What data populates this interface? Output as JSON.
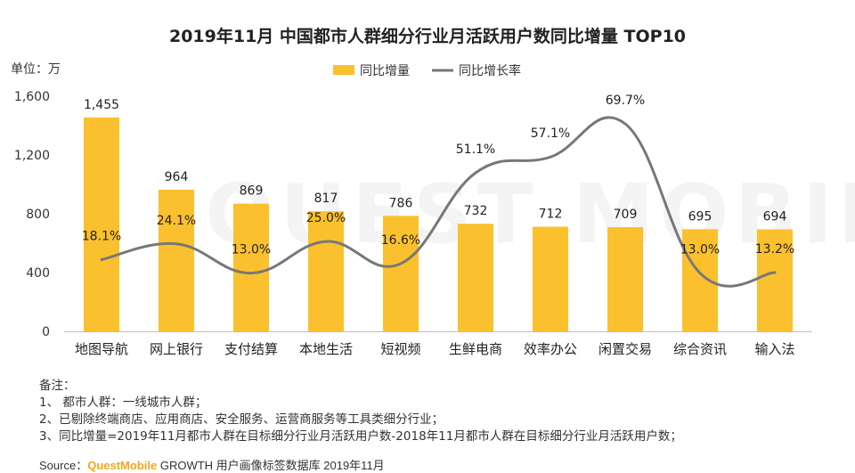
{
  "chart_data": {
    "type": "bar",
    "title": "2019年11月 中国都市人群细分行业月活跃用户数同比增量 TOP10",
    "unit_label": "单位：万",
    "categories": [
      "地图导航",
      "网上银行",
      "支付结算",
      "本地生活",
      "短视频",
      "生鲜电商",
      "效率办公",
      "闲置交易",
      "综合资讯",
      "输入法"
    ],
    "series": [
      {
        "name": "同比增量",
        "type": "bar",
        "color": "#FBC02D",
        "values": [
          1455,
          964,
          869,
          817,
          786,
          732,
          712,
          709,
          695,
          694
        ],
        "value_labels": [
          "1,455",
          "964",
          "869",
          "817",
          "786",
          "732",
          "712",
          "709",
          "695",
          "694"
        ]
      },
      {
        "name": "同比增长率",
        "type": "line",
        "color": "#777777",
        "values": [
          18.1,
          24.1,
          13.0,
          25.0,
          16.6,
          51.1,
          57.1,
          69.7,
          13.0,
          13.2
        ],
        "value_labels": [
          "18.1%",
          "24.1%",
          "13.0%",
          "25.0%",
          "16.6%",
          "51.1%",
          "57.1%",
          "69.7%",
          "13.0%",
          "13.2%"
        ]
      }
    ],
    "y_ticks": [
      "0",
      "400",
      "800",
      "1,200",
      "1,600"
    ],
    "ylim": [
      0,
      1600
    ],
    "legend_position": "top-center",
    "grid": false
  },
  "watermark": "QUEST MOBILE",
  "notes": {
    "heading": "备注：",
    "lines": [
      "1、 都市人群：一线城市人群；",
      "2、已剔除终端商店、应用商店、安全服务、运营商服务等工具类细分行业；",
      "3、同比增量=2019年11月都市人群在目标细分行业月活跃用户数-2018年11月都市人群在目标细分行业月活跃用户数；"
    ]
  },
  "source": {
    "prefix": "Source：",
    "brand": "QuestMobile",
    "text": " GROWTH 用户画像标签数据库  2019年11月"
  }
}
